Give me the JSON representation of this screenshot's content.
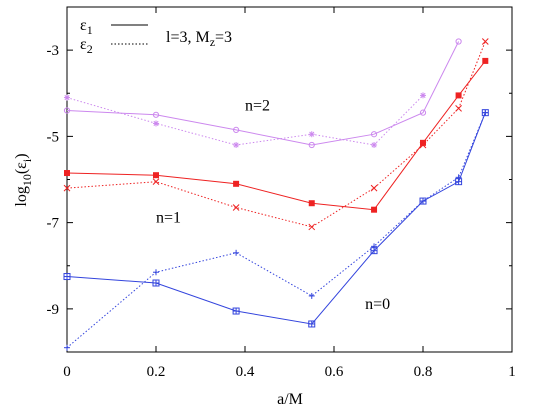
{
  "chart_data": {
    "type": "line",
    "xlabel": "a/M",
    "ylabel_base": "log",
    "ylabel_sub": "10",
    "ylabel_arg": "(ε",
    "ylabel_arg_sub": "i",
    "ylabel_close": ")",
    "xlim": [
      0,
      1
    ],
    "ylim": [
      -10,
      -2
    ],
    "xticks": [
      {
        "value": 0,
        "label": "0"
      },
      {
        "value": 0.2,
        "label": "0.2"
      },
      {
        "value": 0.4,
        "label": "0.4"
      },
      {
        "value": 0.6,
        "label": "0.6"
      },
      {
        "value": 0.8,
        "label": "0.8"
      },
      {
        "value": 1,
        "label": "1"
      }
    ],
    "yticks": [
      {
        "value": -3,
        "label": "-3"
      },
      {
        "value": -5,
        "label": "-5"
      },
      {
        "value": -7,
        "label": "-7"
      },
      {
        "value": -9,
        "label": "-9"
      }
    ],
    "legend": {
      "placement": "top-left",
      "entries": [
        {
          "symbol": "ε",
          "sub": "1",
          "style": "solid"
        },
        {
          "symbol": "ε",
          "sub": "2",
          "style": "dotted"
        }
      ],
      "params_text": "l=3, M",
      "params_sub": "z",
      "params_tail": "=3"
    },
    "annotations": [
      {
        "text": "n=2",
        "x": 0.4,
        "y": -4.4
      },
      {
        "text": "n=1",
        "x": 0.2,
        "y": -7.0
      },
      {
        "text": "n=0",
        "x": 0.67,
        "y": -9.0
      }
    ],
    "series": [
      {
        "group": "n=2",
        "eps": 1,
        "style": "solid",
        "marker": "circle",
        "color": "#cc88ee",
        "x": [
          0,
          0.2,
          0.38,
          0.55,
          0.69,
          0.8,
          0.88
        ],
        "y": [
          -4.4,
          -4.5,
          -4.85,
          -5.2,
          -4.95,
          -4.45,
          -2.8
        ]
      },
      {
        "group": "n=2",
        "eps": 2,
        "style": "dotted",
        "marker": "star",
        "color": "#cc88ee",
        "x": [
          0,
          0.2,
          0.38,
          0.55,
          0.69,
          0.8
        ],
        "y": [
          -4.1,
          -4.7,
          -5.2,
          -4.95,
          -5.2,
          -4.05
        ]
      },
      {
        "group": "n=1",
        "eps": 1,
        "style": "solid",
        "marker": "filled-square",
        "color": "#ee2222",
        "x": [
          0,
          0.2,
          0.38,
          0.55,
          0.69,
          0.8,
          0.88,
          0.94
        ],
        "y": [
          -5.85,
          -5.9,
          -6.1,
          -6.55,
          -6.7,
          -5.15,
          -4.05,
          -3.25
        ]
      },
      {
        "group": "n=1",
        "eps": 2,
        "style": "dotted",
        "marker": "cross",
        "color": "#ee2222",
        "x": [
          0,
          0.2,
          0.38,
          0.55,
          0.69,
          0.8,
          0.88,
          0.94
        ],
        "y": [
          -6.2,
          -6.05,
          -6.65,
          -7.1,
          -6.2,
          -5.2,
          -4.35,
          -2.8
        ]
      },
      {
        "group": "n=0",
        "eps": 1,
        "style": "solid",
        "marker": "open-square",
        "color": "#3344dd",
        "x": [
          0,
          0.2,
          0.38,
          0.55,
          0.69,
          0.8,
          0.88,
          0.94
        ],
        "y": [
          -8.25,
          -8.4,
          -9.05,
          -9.35,
          -7.65,
          -6.5,
          -6.05,
          -4.45
        ]
      },
      {
        "group": "n=0",
        "eps": 2,
        "style": "dotted",
        "marker": "plus",
        "color": "#3344dd",
        "x": [
          0,
          0.2,
          0.38,
          0.55,
          0.69,
          0.8,
          0.88,
          0.94
        ],
        "y": [
          -9.9,
          -8.15,
          -7.7,
          -8.7,
          -7.55,
          -6.5,
          -5.95,
          -4.45
        ]
      }
    ]
  }
}
